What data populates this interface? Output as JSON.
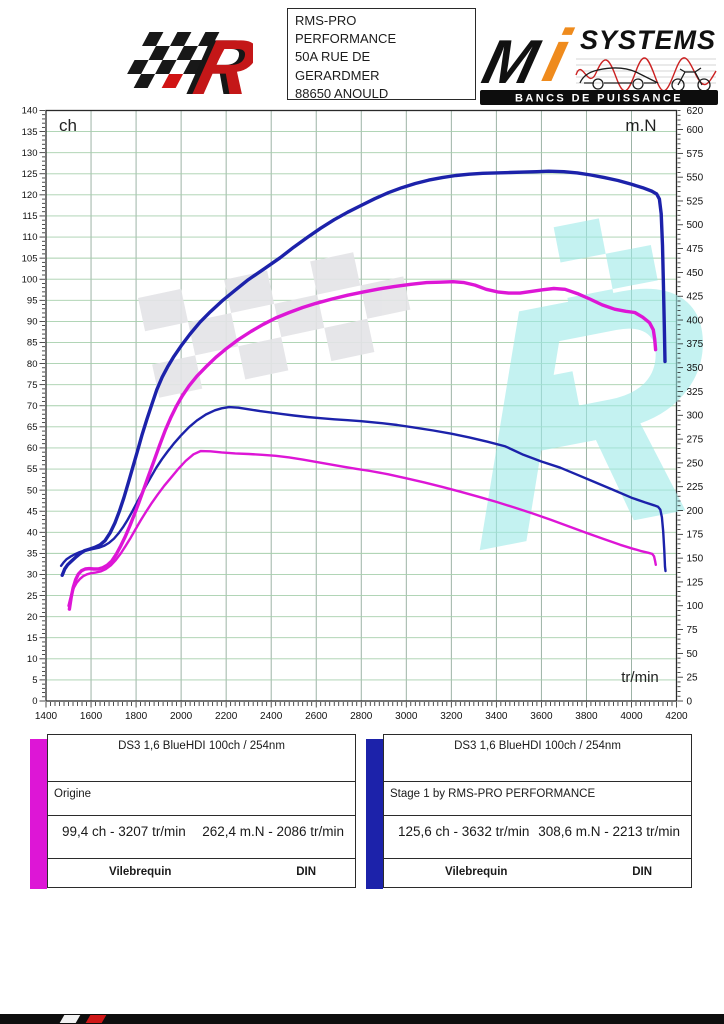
{
  "header": {
    "address": {
      "lines": [
        "RMS-PRO",
        "PERFORMANCE",
        "50A RUE DE",
        "GERARDMER",
        "88650 ANOULD"
      ]
    },
    "right_logo": {
      "brand_m": "M",
      "brand_i": "i",
      "brand_systems": "SYSTEMS",
      "banner": "BANCS DE PUISSANCE"
    },
    "left_logo": {
      "letter": "R"
    }
  },
  "chart_data": {
    "type": "line",
    "grid": true,
    "x_axis": {
      "label": "tr/min",
      "min": 1400,
      "max": 4200,
      "tick_step": 200,
      "minor_step": 20
    },
    "y_left": {
      "label": "ch",
      "min": 0,
      "max": 140,
      "tick_step": 5,
      "minor_step": 1
    },
    "y_right": {
      "label": "m.N",
      "min": 0,
      "max": 620,
      "tick_step": 25,
      "minor_step": 5,
      "top_label": 620
    },
    "series": [
      {
        "name": "stage1-torque",
        "axis": "right",
        "color": "#1c22aa",
        "width": 2.4,
        "points": [
          [
            1467,
            142
          ],
          [
            1478,
            145.5
          ],
          [
            1492,
            149
          ],
          [
            1508,
            151.5
          ],
          [
            1526,
            153.8
          ],
          [
            1546,
            156
          ],
          [
            1568,
            157.8
          ],
          [
            1590,
            158.8
          ],
          [
            1612,
            159.8
          ],
          [
            1635,
            161
          ],
          [
            1658,
            163
          ],
          [
            1680,
            166
          ],
          [
            1702,
            170.5
          ],
          [
            1722,
            176
          ],
          [
            1742,
            182.5
          ],
          [
            1762,
            190
          ],
          [
            1782,
            198.5
          ],
          [
            1802,
            207.5
          ],
          [
            1822,
            216.5
          ],
          [
            1845,
            226.5
          ],
          [
            1868,
            236
          ],
          [
            1890,
            245
          ],
          [
            1915,
            254
          ],
          [
            1940,
            262
          ],
          [
            1970,
            271
          ],
          [
            2000,
            279
          ],
          [
            2035,
            287.5
          ],
          [
            2070,
            294.5
          ],
          [
            2110,
            300.8
          ],
          [
            2150,
            305.2
          ],
          [
            2180,
            307.3
          ],
          [
            2213,
            308.6
          ],
          [
            2255,
            308
          ],
          [
            2300,
            306.3
          ],
          [
            2350,
            304.4
          ],
          [
            2400,
            302.8
          ],
          [
            2450,
            301.2
          ],
          [
            2500,
            299.8
          ],
          [
            2560,
            298.2
          ],
          [
            2620,
            296.9
          ],
          [
            2680,
            295.8
          ],
          [
            2740,
            294.8
          ],
          [
            2800,
            293.8
          ],
          [
            2880,
            292
          ],
          [
            2960,
            289.8
          ],
          [
            3040,
            287
          ],
          [
            3120,
            284
          ],
          [
            3200,
            280.7
          ],
          [
            3280,
            276.8
          ],
          [
            3360,
            272.3
          ],
          [
            3440,
            267.3
          ],
          [
            3520,
            258.5
          ],
          [
            3600,
            251.5
          ],
          [
            3684,
            245
          ],
          [
            3760,
            237.5
          ],
          [
            3840,
            229.5
          ],
          [
            3920,
            221.5
          ],
          [
            4000,
            213.5
          ],
          [
            4060,
            208.5
          ],
          [
            4100,
            205.5
          ],
          [
            4118,
            204
          ],
          [
            4128,
            201
          ],
          [
            4135,
            193
          ],
          [
            4141,
            178
          ],
          [
            4146,
            158
          ],
          [
            4149,
            141
          ],
          [
            4151,
            136.5
          ]
        ]
      },
      {
        "name": "origine-torque",
        "axis": "right",
        "color": "#dd16d6",
        "width": 2.4,
        "points": [
          [
            1500,
            100
          ],
          [
            1506,
            106
          ],
          [
            1514,
            113
          ],
          [
            1524,
            119
          ],
          [
            1536,
            124
          ],
          [
            1550,
            128
          ],
          [
            1565,
            131
          ],
          [
            1582,
            133
          ],
          [
            1600,
            134.2
          ],
          [
            1620,
            134.8
          ],
          [
            1642,
            136
          ],
          [
            1665,
            138.5
          ],
          [
            1688,
            142.5
          ],
          [
            1710,
            148
          ],
          [
            1732,
            155
          ],
          [
            1754,
            163
          ],
          [
            1776,
            171.5
          ],
          [
            1798,
            180.5
          ],
          [
            1820,
            189.5
          ],
          [
            1845,
            199
          ],
          [
            1870,
            208
          ],
          [
            1895,
            216.5
          ],
          [
            1925,
            226
          ],
          [
            1955,
            234.5
          ],
          [
            1985,
            243
          ],
          [
            2020,
            252
          ],
          [
            2055,
            259
          ],
          [
            2086,
            262.4
          ],
          [
            2130,
            262.2
          ],
          [
            2180,
            261
          ],
          [
            2240,
            260
          ],
          [
            2300,
            259.3
          ],
          [
            2360,
            258.5
          ],
          [
            2420,
            257.5
          ],
          [
            2480,
            255.8
          ],
          [
            2540,
            253.5
          ],
          [
            2600,
            251
          ],
          [
            2660,
            248.5
          ],
          [
            2720,
            246
          ],
          [
            2780,
            243.7
          ],
          [
            2840,
            241.5
          ],
          [
            2920,
            238
          ],
          [
            3000,
            233.8
          ],
          [
            3080,
            229.5
          ],
          [
            3160,
            224.8
          ],
          [
            3240,
            219.8
          ],
          [
            3320,
            214.5
          ],
          [
            3400,
            209
          ],
          [
            3480,
            203.2
          ],
          [
            3560,
            197
          ],
          [
            3640,
            190.5
          ],
          [
            3720,
            183.5
          ],
          [
            3800,
            176.5
          ],
          [
            3880,
            169.8
          ],
          [
            3950,
            164
          ],
          [
            4000,
            160.3
          ],
          [
            4040,
            157.6
          ],
          [
            4075,
            155.6
          ],
          [
            4092,
            154.5
          ],
          [
            4100,
            152
          ],
          [
            4105,
            147
          ],
          [
            4108,
            143
          ]
        ]
      },
      {
        "name": "stage1-power",
        "axis": "left",
        "color": "#1c22aa",
        "width": 3.4,
        "points": [
          [
            1472,
            29.8
          ],
          [
            1483,
            31.3
          ],
          [
            1496,
            32.3
          ],
          [
            1512,
            33.1
          ],
          [
            1530,
            34
          ],
          [
            1550,
            34.9
          ],
          [
            1570,
            35.6
          ],
          [
            1592,
            36
          ],
          [
            1615,
            36.4
          ],
          [
            1640,
            37
          ],
          [
            1662,
            38
          ],
          [
            1684,
            39.8
          ],
          [
            1706,
            42.2
          ],
          [
            1726,
            45
          ],
          [
            1746,
            48.2
          ],
          [
            1766,
            51.8
          ],
          [
            1786,
            55.5
          ],
          [
            1806,
            59.2
          ],
          [
            1826,
            63
          ],
          [
            1848,
            66.8
          ],
          [
            1870,
            70.3
          ],
          [
            1892,
            73.8
          ],
          [
            1916,
            76.8
          ],
          [
            1940,
            79.2
          ],
          [
            1968,
            81.7
          ],
          [
            2000,
            84.2
          ],
          [
            2040,
            87
          ],
          [
            2084,
            89.8
          ],
          [
            2130,
            92.3
          ],
          [
            2181,
            94.8
          ],
          [
            2240,
            97.4
          ],
          [
            2299,
            99.9
          ],
          [
            2370,
            102.5
          ],
          [
            2440,
            105.1
          ],
          [
            2500,
            107.6
          ],
          [
            2560,
            109.9
          ],
          [
            2620,
            112.1
          ],
          [
            2680,
            114.1
          ],
          [
            2740,
            115.9
          ],
          [
            2800,
            117.5
          ],
          [
            2860,
            119.1
          ],
          [
            2920,
            120.5
          ],
          [
            2980,
            121.7
          ],
          [
            3040,
            122.7
          ],
          [
            3100,
            123.5
          ],
          [
            3160,
            124.1
          ],
          [
            3220,
            124.6
          ],
          [
            3280,
            124.9
          ],
          [
            3340,
            125.1
          ],
          [
            3400,
            125.2
          ],
          [
            3460,
            125.3
          ],
          [
            3520,
            125.4
          ],
          [
            3580,
            125.5
          ],
          [
            3632,
            125.6
          ],
          [
            3700,
            125.5
          ],
          [
            3760,
            125.2
          ],
          [
            3820,
            124.7
          ],
          [
            3880,
            124.1
          ],
          [
            3940,
            123.4
          ],
          [
            4000,
            122.5
          ],
          [
            4050,
            121.7
          ],
          [
            4090,
            120.9
          ],
          [
            4112,
            120.2
          ],
          [
            4124,
            119
          ],
          [
            4132,
            115.5
          ],
          [
            4138,
            108
          ],
          [
            4142,
            99
          ],
          [
            4146,
            89
          ],
          [
            4149,
            80.5
          ]
        ]
      },
      {
        "name": "origine-power",
        "axis": "left",
        "color": "#dd16d6",
        "width": 3.4,
        "points": [
          [
            1504,
            21.8
          ],
          [
            1512,
            24.6
          ],
          [
            1521,
            26.9
          ],
          [
            1532,
            28.8
          ],
          [
            1544,
            30.1
          ],
          [
            1558,
            30.9
          ],
          [
            1574,
            31.3
          ],
          [
            1592,
            31.4
          ],
          [
            1612,
            31.3
          ],
          [
            1632,
            31.3
          ],
          [
            1652,
            31.6
          ],
          [
            1672,
            32.2
          ],
          [
            1692,
            33.2
          ],
          [
            1712,
            34.8
          ],
          [
            1732,
            36.8
          ],
          [
            1752,
            39
          ],
          [
            1772,
            41.5
          ],
          [
            1792,
            44.2
          ],
          [
            1812,
            47
          ],
          [
            1834,
            50.2
          ],
          [
            1856,
            53.5
          ],
          [
            1880,
            57
          ],
          [
            1905,
            60.7
          ],
          [
            1930,
            64.2
          ],
          [
            1955,
            67.3
          ],
          [
            1980,
            70
          ],
          [
            2005,
            72.3
          ],
          [
            2035,
            74.7
          ],
          [
            2070,
            77
          ],
          [
            2110,
            79.2
          ],
          [
            2155,
            81.5
          ],
          [
            2200,
            83.5
          ],
          [
            2255,
            85.7
          ],
          [
            2310,
            87.6
          ],
          [
            2365,
            89.3
          ],
          [
            2420,
            90.8
          ],
          [
            2480,
            92.1
          ],
          [
            2540,
            93.3
          ],
          [
            2600,
            94.3
          ],
          [
            2670,
            95.3
          ],
          [
            2740,
            96.2
          ],
          [
            2810,
            97
          ],
          [
            2880,
            97.7
          ],
          [
            2950,
            98.3
          ],
          [
            3020,
            98.8
          ],
          [
            3090,
            99.2
          ],
          [
            3150,
            99.3
          ],
          [
            3207,
            99.4
          ],
          [
            3257,
            99.2
          ],
          [
            3305,
            98.6
          ],
          [
            3355,
            97.6
          ],
          [
            3405,
            97
          ],
          [
            3455,
            96.7
          ],
          [
            3505,
            96.7
          ],
          [
            3555,
            97.1
          ],
          [
            3605,
            97.5
          ],
          [
            3655,
            97.8
          ],
          [
            3705,
            97.6
          ],
          [
            3760,
            96.6
          ],
          [
            3815,
            95.3
          ],
          [
            3870,
            93.9
          ],
          [
            3925,
            92.9
          ],
          [
            3975,
            92.4
          ],
          [
            4015,
            92.1
          ],
          [
            4050,
            91
          ],
          [
            4080,
            89.7
          ],
          [
            4097,
            88
          ],
          [
            4103,
            85.8
          ],
          [
            4107,
            83.3
          ]
        ]
      }
    ]
  },
  "legends": [
    {
      "bar_color": "#dd16d6",
      "title": "DS3 1,6 BlueHDI 100ch / 254nm",
      "variant": "Origine",
      "power": "99,4 ch - 3207 tr/min",
      "torque": "262,4 m.N - 2086 tr/min",
      "col1": "Vilebrequin",
      "col2": "DIN"
    },
    {
      "bar_color": "#1c22aa",
      "title": "DS3 1,6 BlueHDI 100ch / 254nm",
      "variant": "Stage 1 by RMS-PRO PERFORMANCE",
      "power": "125,6 ch - 3632 tr/min",
      "torque": "308,6 m.N - 2213 tr/min",
      "col1": "Vilebrequin",
      "col2": "DIN"
    }
  ]
}
